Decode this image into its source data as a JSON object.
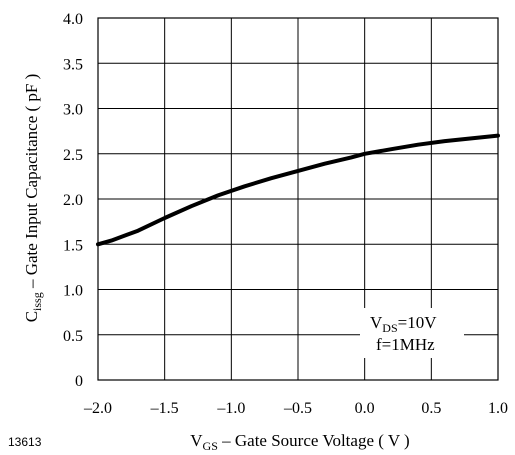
{
  "chart_data": {
    "type": "line",
    "title": "",
    "xlabel": {
      "main": "V",
      "sub": "GS",
      "rest": " – Gate Source Voltage ( V )"
    },
    "ylabel": {
      "main": "C",
      "sub": "issg",
      "rest": "  – Gate Input Capacitance ( pF )"
    },
    "xlim": [
      -2.0,
      1.0
    ],
    "ylim": [
      0,
      4.0
    ],
    "x_ticks": [
      -2.0,
      -1.5,
      -1.0,
      -0.5,
      0.0,
      0.5,
      1.0
    ],
    "x_tick_labels": [
      "–2.0",
      "–1.5",
      "–1.0",
      "–0.5",
      "0.0",
      "0.5",
      "1.0"
    ],
    "y_ticks": [
      0,
      0.5,
      1.0,
      1.5,
      2.0,
      2.5,
      3.0,
      3.5,
      4.0
    ],
    "y_tick_labels": [
      "0",
      "0.5",
      "1.0",
      "1.5",
      "2.0",
      "2.5",
      "3.0",
      "3.5",
      "4.0"
    ],
    "grid": true,
    "series": [
      {
        "x": [
          -2.0,
          -1.9,
          -1.7,
          -1.5,
          -1.3,
          -1.1,
          -0.9,
          -0.7,
          -0.5,
          -0.3,
          -0.1,
          0.0,
          0.2,
          0.4,
          0.6,
          0.8,
          1.0
        ],
        "y": [
          1.5,
          1.54,
          1.65,
          1.79,
          1.92,
          2.04,
          2.14,
          2.23,
          2.31,
          2.39,
          2.46,
          2.5,
          2.55,
          2.6,
          2.64,
          2.67,
          2.7
        ]
      }
    ],
    "annotation": {
      "line1_main": "V",
      "line1_sub": "DS",
      "line1_rest": "=10V",
      "line2": "f=1MHz"
    }
  },
  "figure_id": "13613"
}
